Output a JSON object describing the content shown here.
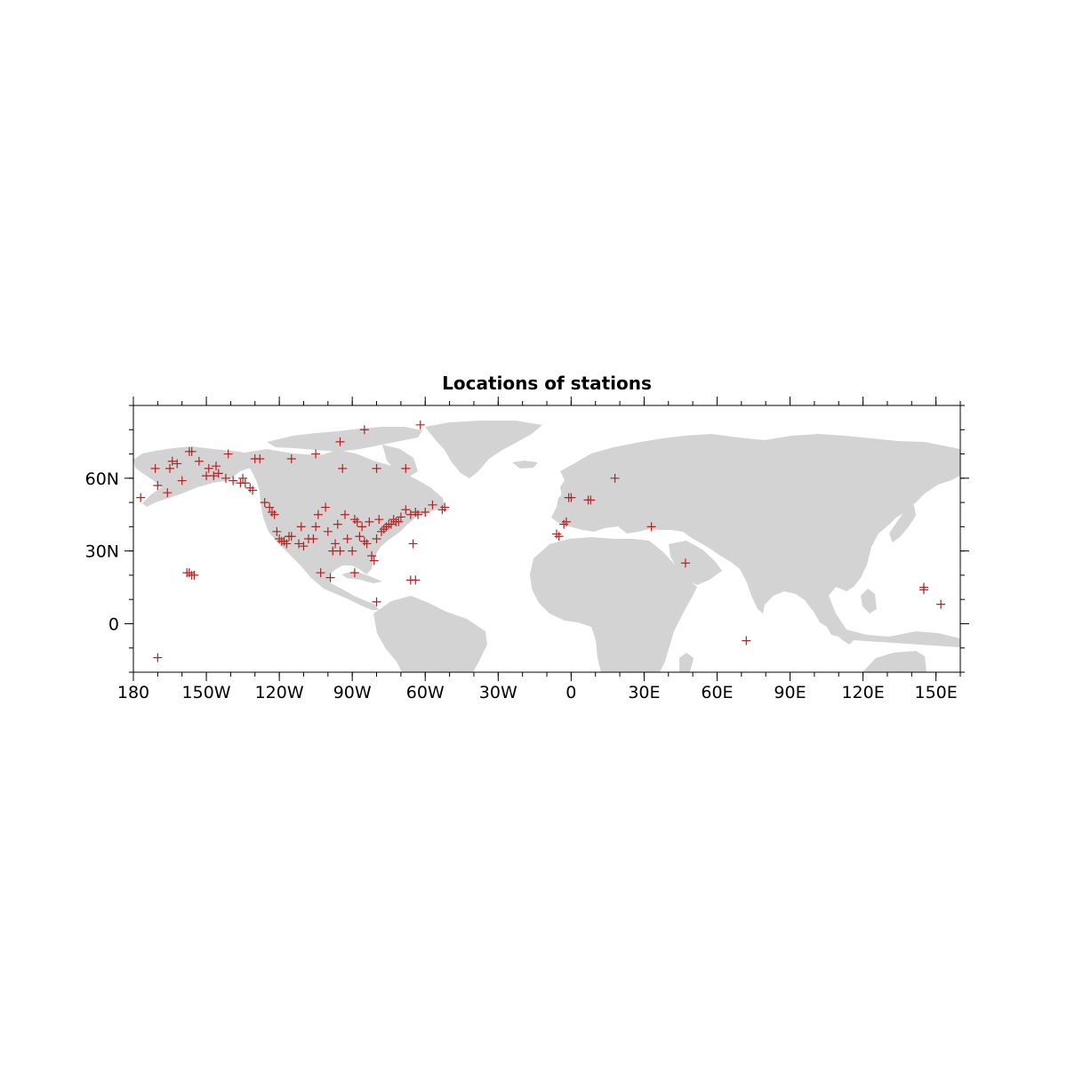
{
  "title": "Locations of stations",
  "colors": {
    "land": "#d3d3d3",
    "marker": "#b22222",
    "frame": "#000000"
  },
  "map": {
    "projection": "cylindrical equidistant",
    "lon_range": [
      -180,
      160
    ],
    "lat_range": [
      -20,
      90
    ],
    "x_ticks": [
      {
        "value": -180,
        "label": "180"
      },
      {
        "value": -150,
        "label": "150W"
      },
      {
        "value": -120,
        "label": "120W"
      },
      {
        "value": -90,
        "label": "90W"
      },
      {
        "value": -60,
        "label": "60W"
      },
      {
        "value": -30,
        "label": "30W"
      },
      {
        "value": 0,
        "label": "0"
      },
      {
        "value": 30,
        "label": "30E"
      },
      {
        "value": 60,
        "label": "60E"
      },
      {
        "value": 90,
        "label": "90E"
      },
      {
        "value": 120,
        "label": "120E"
      },
      {
        "value": 150,
        "label": "150E"
      }
    ],
    "y_ticks": [
      {
        "value": 0,
        "label": "0"
      },
      {
        "value": 30,
        "label": "30N"
      },
      {
        "value": 60,
        "label": "60N"
      }
    ],
    "marker": "+"
  },
  "chart_data": {
    "type": "scatter",
    "title": "Locations of stations",
    "xlabel": "",
    "ylabel": "",
    "xlim": [
      -180,
      160
    ],
    "ylim": [
      -20,
      90
    ],
    "series": [
      {
        "points": [
          [
            -177,
            52
          ],
          [
            -170,
            -14
          ],
          [
            -171,
            64
          ],
          [
            -170,
            57
          ],
          [
            -166,
            54
          ],
          [
            -165,
            64
          ],
          [
            -164,
            67
          ],
          [
            -162,
            66
          ],
          [
            -160,
            59
          ],
          [
            -157,
            71
          ],
          [
            -156,
            71
          ],
          [
            -153,
            67
          ],
          [
            -150,
            61
          ],
          [
            -149,
            64
          ],
          [
            -147,
            61
          ],
          [
            -146,
            65
          ],
          [
            -145,
            62
          ],
          [
            -142,
            60
          ],
          [
            -141,
            70
          ],
          [
            -139,
            59
          ],
          [
            -136,
            58
          ],
          [
            -135,
            60
          ],
          [
            -134,
            58
          ],
          [
            -132,
            56
          ],
          [
            -131,
            55
          ],
          [
            -128,
            68
          ],
          [
            -126,
            50
          ],
          [
            -124,
            48
          ],
          [
            -123,
            46
          ],
          [
            -122,
            45
          ],
          [
            -121,
            38
          ],
          [
            -120,
            35
          ],
          [
            -119,
            34
          ],
          [
            -118,
            34
          ],
          [
            -117,
            33
          ],
          [
            -116,
            36
          ],
          [
            -115,
            36
          ],
          [
            -112,
            33
          ],
          [
            -111,
            40
          ],
          [
            -110,
            32
          ],
          [
            -108,
            35
          ],
          [
            -106,
            35
          ],
          [
            -105,
            40
          ],
          [
            -104,
            45
          ],
          [
            -101,
            48
          ],
          [
            -100,
            38
          ],
          [
            -98,
            30
          ],
          [
            -97,
            33
          ],
          [
            -96,
            41
          ],
          [
            -95,
            30
          ],
          [
            -93,
            45
          ],
          [
            -92,
            35
          ],
          [
            -90,
            30
          ],
          [
            -89,
            43
          ],
          [
            -88,
            42
          ],
          [
            -87,
            36
          ],
          [
            -86,
            40
          ],
          [
            -85,
            34
          ],
          [
            -84,
            33
          ],
          [
            -83,
            42
          ],
          [
            -82,
            28
          ],
          [
            -81,
            26
          ],
          [
            -80,
            35
          ],
          [
            -79,
            43
          ],
          [
            -78,
            38
          ],
          [
            -77,
            39
          ],
          [
            -76,
            40
          ],
          [
            -75,
            41
          ],
          [
            -74,
            41
          ],
          [
            -73,
            43
          ],
          [
            -72,
            42
          ],
          [
            -71,
            42
          ],
          [
            -70,
            44
          ],
          [
            -68,
            47
          ],
          [
            -66,
            45
          ],
          [
            -64,
            46
          ],
          [
            -63,
            45
          ],
          [
            -60,
            46
          ],
          [
            -57,
            49
          ],
          [
            -53,
            47
          ],
          [
            -52,
            48
          ],
          [
            -95,
            75
          ],
          [
            -85,
            80
          ],
          [
            -62,
            82
          ],
          [
            -80,
            64
          ],
          [
            -68,
            64
          ],
          [
            -94,
            64
          ],
          [
            -105,
            70
          ],
          [
            -115,
            68
          ],
          [
            -130,
            68
          ],
          [
            -158,
            21
          ],
          [
            -157,
            21
          ],
          [
            -156,
            20
          ],
          [
            -155,
            20
          ],
          [
            -66,
            18
          ],
          [
            -64,
            18
          ],
          [
            -65,
            33
          ],
          [
            -80,
            9
          ],
          [
            -99,
            19
          ],
          [
            -103,
            21
          ],
          [
            -89,
            21
          ],
          [
            -6,
            37
          ],
          [
            -5,
            36
          ],
          [
            -3,
            41
          ],
          [
            -2,
            42
          ],
          [
            0,
            52
          ],
          [
            -1,
            52
          ],
          [
            7,
            51
          ],
          [
            8,
            51
          ],
          [
            18,
            60
          ],
          [
            33,
            40
          ],
          [
            47,
            25
          ],
          [
            72,
            -7
          ],
          [
            145,
            14
          ],
          [
            145,
            15
          ],
          [
            152,
            8
          ]
        ]
      }
    ]
  }
}
